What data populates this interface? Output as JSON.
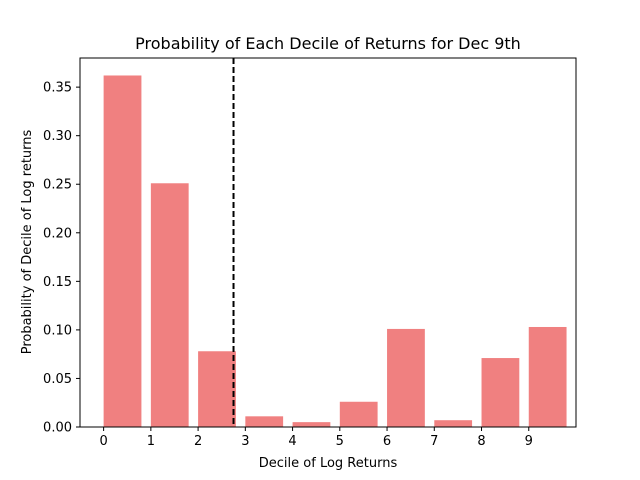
{
  "chart_data": {
    "type": "bar",
    "title": "Probability of Each Decile of Returns for Dec 9th",
    "xlabel": "Decile of Log Returns",
    "ylabel": "Probability of Decile of Log returns",
    "categories": [
      "0",
      "1",
      "2",
      "3",
      "4",
      "5",
      "6",
      "7",
      "8",
      "9"
    ],
    "values": [
      0.362,
      0.251,
      0.078,
      0.011,
      0.005,
      0.026,
      0.101,
      0.007,
      0.071,
      0.103
    ],
    "bar_color": "#f08080",
    "xlim": [
      -0.5,
      10.0
    ],
    "ylim": [
      0,
      0.38
    ],
    "xticks": [
      0,
      1,
      2,
      3,
      4,
      5,
      6,
      7,
      8,
      9
    ],
    "yticks": [
      "0.00",
      "0.05",
      "0.10",
      "0.15",
      "0.20",
      "0.25",
      "0.30",
      "0.35"
    ],
    "vline": {
      "x": 2.75,
      "style": "dashed",
      "color": "#000000"
    },
    "grid": false,
    "legend": "none"
  }
}
